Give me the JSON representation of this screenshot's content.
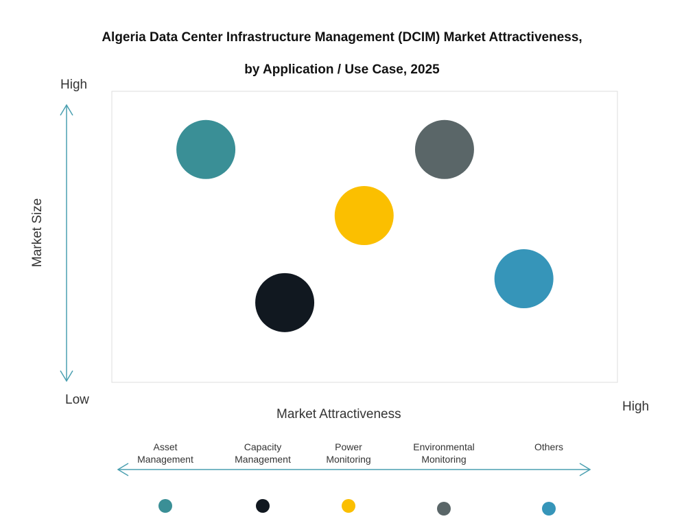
{
  "chart_data": {
    "type": "scatter",
    "title": "Algeria Data Center Infrastructure Management (DCIM) Market Attractiveness,",
    "subtitle": "by Application / Use Case, 2025",
    "xlabel": "Market Attractiveness",
    "ylabel": "Market Size",
    "x_low_label": "Low",
    "x_high_label": "High",
    "y_high_label": "High",
    "xlim": [
      0,
      100
    ],
    "ylim": [
      0,
      100
    ],
    "grid": false,
    "legend_placement": "bottom",
    "points": [
      {
        "name": "Asset Management",
        "x": 18.6,
        "y": 80,
        "color": "#3a8f96"
      },
      {
        "name": "Capacity Management",
        "x": 34.2,
        "y": 27.4,
        "color": "#111820"
      },
      {
        "name": "Power Monitoring",
        "x": 49.9,
        "y": 57.3,
        "color": "#fbbf00"
      },
      {
        "name": "Environmental Monitoring",
        "x": 65.8,
        "y": 80,
        "color": "#5a6668"
      },
      {
        "name": "Others",
        "x": 81.5,
        "y": 35.6,
        "color": "#3695b9"
      }
    ],
    "legend": [
      {
        "line1": "Asset",
        "line2": "Management"
      },
      {
        "line1": "Capacity",
        "line2": "Management"
      },
      {
        "line1": "Power",
        "line2": "Monitoring"
      },
      {
        "line1": "Environmental",
        "line2": "Monitoring"
      },
      {
        "line1": "Others",
        "line2": ""
      }
    ],
    "arrow_color": "#4a9fb0"
  }
}
